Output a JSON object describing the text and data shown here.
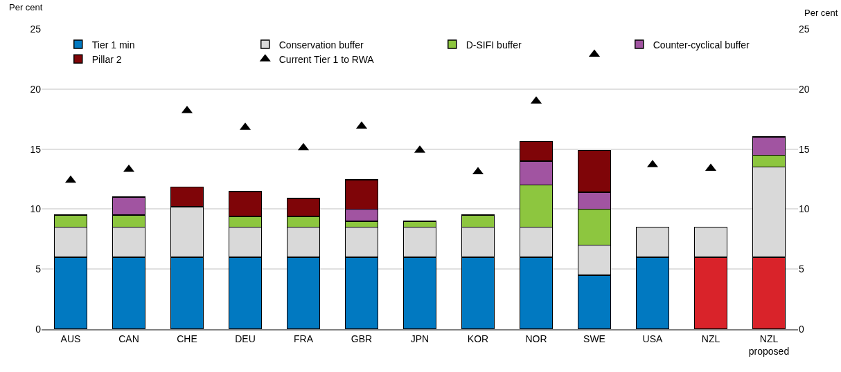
{
  "chart_data": {
    "type": "bar",
    "stacked": true,
    "ylabel": "Per cent",
    "y2label": "Per cent",
    "categories": [
      "AUS",
      "CAN",
      "CHE",
      "DEU",
      "FRA",
      "GBR",
      "JPN",
      "KOR",
      "NOR",
      "SWE",
      "USA",
      "NZL",
      "NZL\nproposed"
    ],
    "series": [
      {
        "name": "Tier 1 min",
        "colors": [
          "#0179c1",
          "#0179c1",
          "#0179c1",
          "#0179c1",
          "#0179c1",
          "#0179c1",
          "#0179c1",
          "#0179c1",
          "#0179c1",
          "#0179c1",
          "#0179c1",
          "#d9232a",
          "#d9232a"
        ],
        "values": [
          6,
          6,
          6,
          6,
          6,
          6,
          6,
          6,
          6,
          4.5,
          6,
          6,
          6
        ]
      },
      {
        "name": "Conservation buffer",
        "color": "#d9d9d9",
        "values": [
          2.5,
          2.5,
          4.2,
          2.5,
          2.5,
          2.5,
          2.5,
          2.5,
          2.5,
          2.5,
          2.5,
          2.5,
          7.5
        ]
      },
      {
        "name": "D-SIFI buffer",
        "color": "#8dc63f",
        "values": [
          1,
          1,
          null,
          0.9,
          0.9,
          0.5,
          0.5,
          1,
          3.5,
          3,
          null,
          null,
          1
        ]
      },
      {
        "name": "Counter-cyclical buffer",
        "color": "#a154a1",
        "values": [
          null,
          1.5,
          null,
          null,
          null,
          1,
          null,
          null,
          2,
          1.4,
          null,
          null,
          1.5
        ]
      },
      {
        "name": "Pillar 2",
        "color": "#7f0508",
        "values": [
          null,
          null,
          1.65,
          2.05,
          1.5,
          2.45,
          null,
          null,
          1.65,
          3.5,
          null,
          null,
          null
        ]
      },
      {
        "name": "Current Tier 1 to RWA",
        "type": "scatter",
        "marker": "triangle",
        "color": "#000000",
        "values": [
          12.4,
          13.3,
          18.2,
          16.8,
          15.1,
          16.9,
          14.9,
          13.1,
          19.0,
          22.9,
          13.7,
          13.4,
          null
        ]
      }
    ],
    "ylim": [
      0,
      25
    ],
    "yticks": [
      0,
      5,
      10,
      15,
      20,
      25
    ],
    "y2lim": [
      0,
      25
    ],
    "y2ticks": [
      0,
      5,
      10,
      15,
      20,
      25
    ],
    "grid": "y",
    "legend": "top left"
  }
}
